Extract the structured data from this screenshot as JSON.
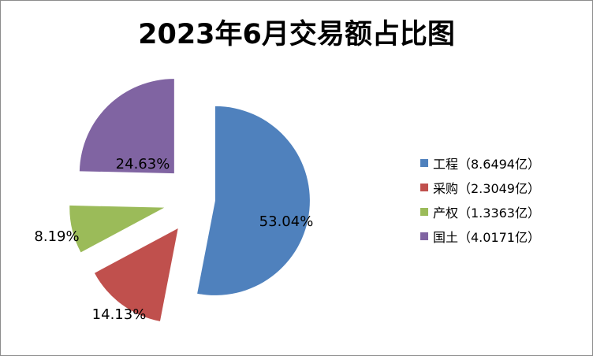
{
  "chart_data": {
    "type": "pie",
    "title": "2023年6月交易额占比图",
    "categories": [
      "工程",
      "采购",
      "产权",
      "国土"
    ],
    "values": [
      8.6494,
      2.3049,
      1.3363,
      4.0171
    ],
    "percent_labels": [
      "53.04%",
      "14.13%",
      "8.19%",
      "24.63%"
    ],
    "legend_labels": [
      "工程（8.6494亿）",
      "采购（2.3049亿）",
      "产权（1.3363亿）",
      "国土（4.0171亿）"
    ],
    "colors": [
      "#4F81BD",
      "#C0504D",
      "#9BBB59",
      "#8064A2"
    ],
    "exploded": true,
    "legend_position": "right"
  }
}
